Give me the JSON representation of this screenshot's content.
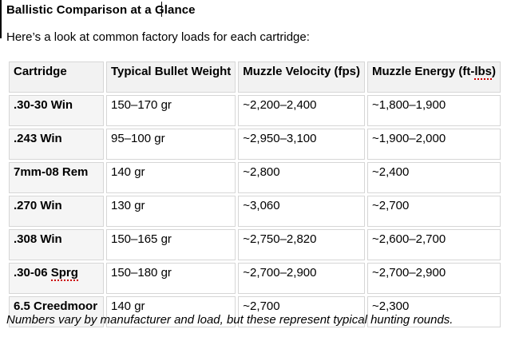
{
  "page": {
    "title": "Ballistic Comparison at a Glance",
    "intro": "Here’s a look at common factory loads for each cartridge:",
    "footnote": "Numbers vary by manufacturer and load, but these represent typical hunting rounds."
  },
  "table": {
    "headers": {
      "cartridge": "Cartridge",
      "weight": "Typical Bullet Weight",
      "velocity": "Muzzle Velocity (fps)",
      "energy_prefix": "Muzzle Energy (ft-",
      "energy_misspelled": "lbs",
      "energy_suffix": ")"
    },
    "rows": [
      {
        "cartridge": ".30-30 Win",
        "weight": "150–170 gr",
        "velocity": "~2,200–2,400",
        "energy": "~1,800–1,900"
      },
      {
        "cartridge": ".243 Win",
        "weight": "95–100 gr",
        "velocity": "~2,950–3,100",
        "energy": "~1,900–2,000"
      },
      {
        "cartridge": "7mm-08 Rem",
        "weight": "140 gr",
        "velocity": "~2,800",
        "energy": "~2,400"
      },
      {
        "cartridge": ".270 Win",
        "weight": "130 gr",
        "velocity": "~3,060",
        "energy": "~2,700"
      },
      {
        "cartridge": ".308 Win",
        "weight": "150–165 gr",
        "velocity": "~2,750–2,820",
        "energy": "~2,600–2,700"
      },
      {
        "cartridge_prefix": ".30-06 ",
        "cartridge_misspelled": "Sprg",
        "weight": "150–180 gr",
        "velocity": "~2,700–2,900",
        "energy": "~2,700–2,900"
      },
      {
        "cartridge": "6.5 Creedmoor",
        "weight": "140 gr",
        "velocity": "~2,700",
        "energy": "~2,300"
      }
    ]
  },
  "colors": {
    "header_cell_bg": "#f2f2f2",
    "label_cell_bg": "#f5f5f5",
    "cell_border": "#d6d6d6",
    "text": "#000000",
    "spellcheck_underline": "#cc0000"
  }
}
